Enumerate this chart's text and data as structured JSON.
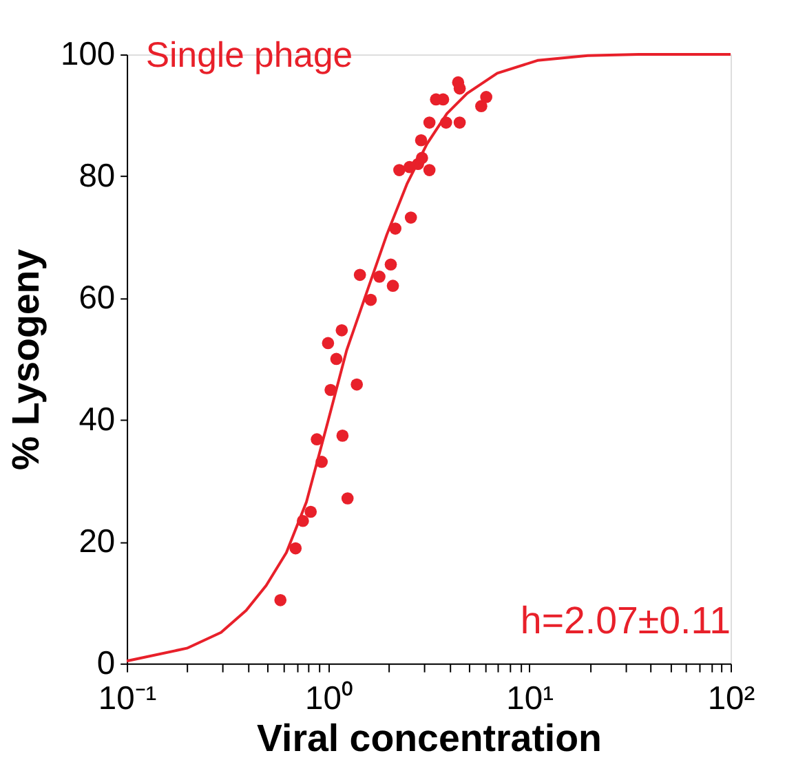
{
  "chart_data": {
    "type": "scatter",
    "xlabel": "Viral concentration",
    "ylabel": "% Lysogeny",
    "log": "x",
    "grid": false,
    "xlim": [
      0.1,
      100
    ],
    "ylim": [
      0,
      100
    ],
    "xticks": [
      {
        "value": 0.1,
        "label": "10⁻¹"
      },
      {
        "value": 0.2,
        "label": null
      },
      {
        "value": 0.3,
        "label": null
      },
      {
        "value": 0.4,
        "label": null
      },
      {
        "value": 0.5,
        "label": null
      },
      {
        "value": 0.6,
        "label": null
      },
      {
        "value": 0.7,
        "label": null
      },
      {
        "value": 0.8,
        "label": null
      },
      {
        "value": 0.9,
        "label": null
      },
      {
        "value": 1,
        "label": "10⁰"
      },
      {
        "value": 2,
        "label": null
      },
      {
        "value": 3,
        "label": null
      },
      {
        "value": 4,
        "label": null
      },
      {
        "value": 5,
        "label": null
      },
      {
        "value": 6,
        "label": null
      },
      {
        "value": 7,
        "label": null
      },
      {
        "value": 8,
        "label": null
      },
      {
        "value": 9,
        "label": null
      },
      {
        "value": 10,
        "label": "10¹"
      },
      {
        "value": 20,
        "label": null
      },
      {
        "value": 30,
        "label": null
      },
      {
        "value": 40,
        "label": null
      },
      {
        "value": 50,
        "label": null
      },
      {
        "value": 60,
        "label": null
      },
      {
        "value": 70,
        "label": null
      },
      {
        "value": 80,
        "label": null
      },
      {
        "value": 90,
        "label": null
      },
      {
        "value": 100,
        "label": "10²"
      }
    ],
    "yticks": [
      0,
      20,
      40,
      60,
      80,
      100
    ],
    "annotations": [
      "h=2.07±0.11"
    ],
    "series": [
      {
        "name": "Single phage",
        "marker": "circle",
        "color": "#e8202a",
        "x": [
          0.58,
          0.69,
          0.75,
          0.82,
          0.88,
          0.93,
          1.0,
          1.03,
          1.1,
          1.17,
          1.18,
          1.25,
          1.39,
          1.44,
          1.63,
          1.8,
          2.05,
          2.1,
          2.16,
          2.26,
          2.58,
          2.54,
          2.8,
          2.93,
          3.19,
          2.9,
          3.19,
          3.44,
          3.73,
          3.86,
          4.51,
          4.43,
          4.51,
          5.77,
          6.11
        ],
        "values": [
          10.4,
          18.9,
          23.4,
          24.9,
          36.8,
          33.1,
          52.6,
          44.9,
          50.0,
          54.7,
          37.4,
          27.1,
          45.8,
          63.8,
          59.7,
          63.5,
          65.5,
          62.0,
          71.4,
          81.0,
          73.2,
          81.5,
          82.0,
          83.0,
          81.0,
          85.9,
          88.8,
          92.6,
          92.6,
          88.8,
          88.8,
          95.4,
          94.4,
          91.5,
          93.0
        ]
      },
      {
        "type": "line",
        "color": "#e8202a",
        "line_style": "solid",
        "x": [
          0.1,
          0.199,
          0.294,
          0.392,
          0.493,
          0.621,
          0.781,
          1.0,
          1.237,
          1.556,
          1.959,
          2.465,
          3.1,
          3.9,
          4.91,
          6.93,
          10.98,
          19.5,
          34.9,
          100
        ],
        "values": [
          0.4,
          2.5,
          5.1,
          8.7,
          12.8,
          18.2,
          26.5,
          39.8,
          51.4,
          60.9,
          70.4,
          78.7,
          85.3,
          90.3,
          93.6,
          96.9,
          99.0,
          99.8,
          100,
          100
        ]
      }
    ]
  }
}
